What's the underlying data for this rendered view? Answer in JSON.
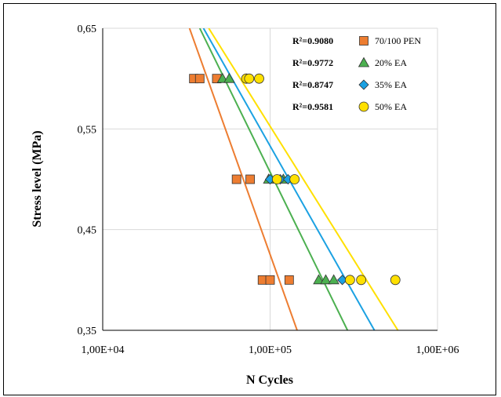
{
  "chart_data": {
    "type": "scatter",
    "xscale": "log",
    "xlabel": "N Cycles",
    "ylabel": "Stress level (MPa)",
    "xlim": [
      10000,
      1000000
    ],
    "ylim": [
      0.35,
      0.65
    ],
    "xticks": [
      10000,
      100000,
      1000000
    ],
    "xtick_labels": [
      "1,00E+04",
      "1,00E+05",
      "1,00E+06"
    ],
    "yticks": [
      0.35,
      0.45,
      0.55,
      0.65
    ],
    "ytick_labels": [
      "0,35",
      "0,45",
      "0,55",
      "0,65"
    ],
    "grid": true,
    "legend_position": "top-right",
    "series": [
      {
        "name": "70/100 PEN",
        "r2_label": "R²=0.9080",
        "color": "#ED7D31",
        "marker": "square",
        "points": [
          {
            "x": 35000,
            "y": 0.6
          },
          {
            "x": 38000,
            "y": 0.6
          },
          {
            "x": 48000,
            "y": 0.6
          },
          {
            "x": 63000,
            "y": 0.5
          },
          {
            "x": 76000,
            "y": 0.5
          },
          {
            "x": 90000,
            "y": 0.4
          },
          {
            "x": 100000,
            "y": 0.4
          },
          {
            "x": 130000,
            "y": 0.4
          }
        ],
        "trendline": [
          {
            "x": 33000,
            "y": 0.65
          },
          {
            "x": 145000,
            "y": 0.35
          }
        ]
      },
      {
        "name": "20% EA",
        "r2_label": "R²=0.9772",
        "color": "#4CB050",
        "marker": "triangle",
        "points": [
          {
            "x": 52000,
            "y": 0.6
          },
          {
            "x": 57000,
            "y": 0.6
          },
          {
            "x": 98000,
            "y": 0.5
          },
          {
            "x": 120000,
            "y": 0.5
          },
          {
            "x": 195000,
            "y": 0.4
          },
          {
            "x": 215000,
            "y": 0.4
          },
          {
            "x": 240000,
            "y": 0.4
          }
        ],
        "trendline": [
          {
            "x": 38000,
            "y": 0.65
          },
          {
            "x": 290000,
            "y": 0.35
          }
        ]
      },
      {
        "name": "35% EA",
        "r2_label": "R²=0.8747",
        "color": "#1BA1E2",
        "marker": "diamond",
        "points": [
          {
            "x": 72000,
            "y": 0.6
          },
          {
            "x": 100000,
            "y": 0.5
          },
          {
            "x": 115000,
            "y": 0.5
          },
          {
            "x": 128000,
            "y": 0.5
          },
          {
            "x": 270000,
            "y": 0.4
          }
        ],
        "trendline": [
          {
            "x": 40000,
            "y": 0.65
          },
          {
            "x": 420000,
            "y": 0.35
          }
        ]
      },
      {
        "name": "50% EA",
        "r2_label": "R²=0.9581",
        "color": "#FFE000",
        "marker": "circle",
        "points": [
          {
            "x": 72000,
            "y": 0.6
          },
          {
            "x": 75000,
            "y": 0.6
          },
          {
            "x": 86000,
            "y": 0.6
          },
          {
            "x": 110000,
            "y": 0.5
          },
          {
            "x": 140000,
            "y": 0.5
          },
          {
            "x": 300000,
            "y": 0.4
          },
          {
            "x": 350000,
            "y": 0.4
          },
          {
            "x": 560000,
            "y": 0.4
          }
        ],
        "trendline": [
          {
            "x": 43000,
            "y": 0.65
          },
          {
            "x": 580000,
            "y": 0.35
          }
        ]
      }
    ]
  }
}
